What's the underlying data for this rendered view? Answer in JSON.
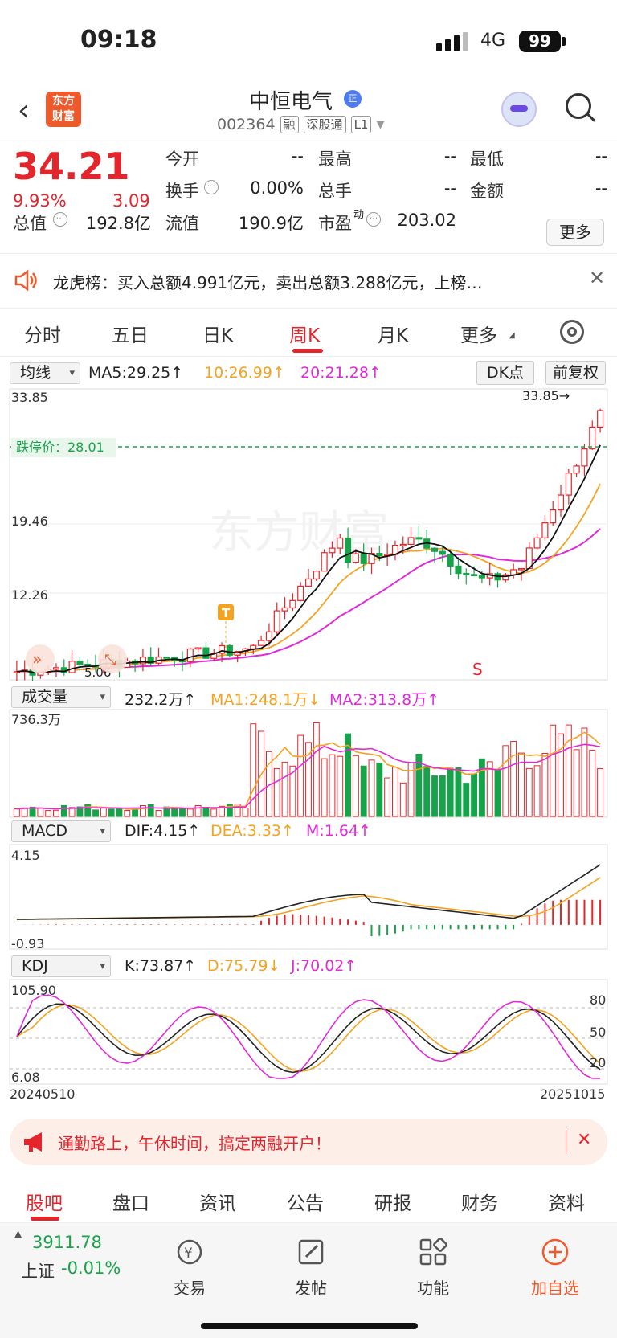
{
  "status_bar": {
    "time": "09:18",
    "network": "4G",
    "battery": "99"
  },
  "header": {
    "logo_line1": "东方",
    "logo_line2": "财富",
    "stock_name": "中恒电气",
    "badge": "正",
    "code": "002364",
    "tags": [
      "融",
      "深股通",
      "L1"
    ]
  },
  "quote": {
    "price": "34.21",
    "change_pct": "9.93%",
    "change_amt": "3.09",
    "rows": [
      [
        {
          "label": "今开",
          "value": "--"
        },
        {
          "label": "最高",
          "value": "--"
        },
        {
          "label": "最低",
          "value": "--"
        }
      ],
      [
        {
          "label": "换手",
          "value": "0.00%"
        },
        {
          "label": "总手",
          "value": "--"
        },
        {
          "label": "金额",
          "value": "--"
        }
      ]
    ],
    "total_mv_label": "总值",
    "total_mv": "192.8亿",
    "float_mv_label": "流值",
    "float_mv": "190.9亿",
    "pe_label": "市盈",
    "pe_sup": "动",
    "pe": "203.02",
    "more_label": "更多"
  },
  "notice": {
    "text": "龙虎榜：买入总额4.991亿元，卖出总额3.288亿元，上榜…",
    "close": "✕"
  },
  "chart_tabs": {
    "items": [
      "分时",
      "五日",
      "日K",
      "周K",
      "月K",
      "更多"
    ],
    "active": "周K"
  },
  "kline": {
    "selector": "均线",
    "ma5": "MA5:29.25↑",
    "ma10": "10:26.99↑",
    "ma20": "20:21.28↑",
    "dk_label": "DK点",
    "adjust_label": "前复权",
    "y_labels": [
      "33.85",
      "19.46",
      "12.26"
    ],
    "limit_label": "跌停价：28.01",
    "max_marker": "33.85→",
    "min_marker": "5.06",
    "t_marker": "T",
    "s_marker": "S",
    "watermark": "东方财富"
  },
  "volume": {
    "selector": "成交量",
    "value": "232.2万↑",
    "ma1": "MA1:248.1万↓",
    "ma2": "MA2:313.8万↑",
    "y_max": "736.3万"
  },
  "macd": {
    "selector": "MACD",
    "dif": "DIF:4.15↑",
    "dea": "DEA:3.33↑",
    "m": "M:1.64↑",
    "y_max": "4.15",
    "y_min": "-0.93"
  },
  "kdj": {
    "selector": "KDJ",
    "k": "K:73.87↑",
    "d": "D:75.79↓",
    "j": "J:70.02↑",
    "y_max": "105.90",
    "y_min": "6.08",
    "levels": [
      "80",
      "50",
      "20"
    ],
    "date_start": "20240510",
    "date_end": "20251015"
  },
  "promo": {
    "text": "通勤路上，午休时间，搞定两融开户！",
    "close": "✕"
  },
  "bottom_tabs": {
    "items": [
      "股吧",
      "盘口",
      "资讯",
      "公告",
      "研报",
      "财务",
      "资料"
    ],
    "active": "股吧"
  },
  "dock": {
    "index_value": "3911.78",
    "index_name": "上证",
    "index_change": "-0.01%",
    "items": [
      "交易",
      "发帖",
      "功能",
      "加自选"
    ]
  },
  "colors": {
    "up": "#e4252b",
    "down": "#16a34a",
    "ma10": "#f4a320",
    "ma20": "#e02bd8",
    "accent": "#ef5a2c"
  }
}
